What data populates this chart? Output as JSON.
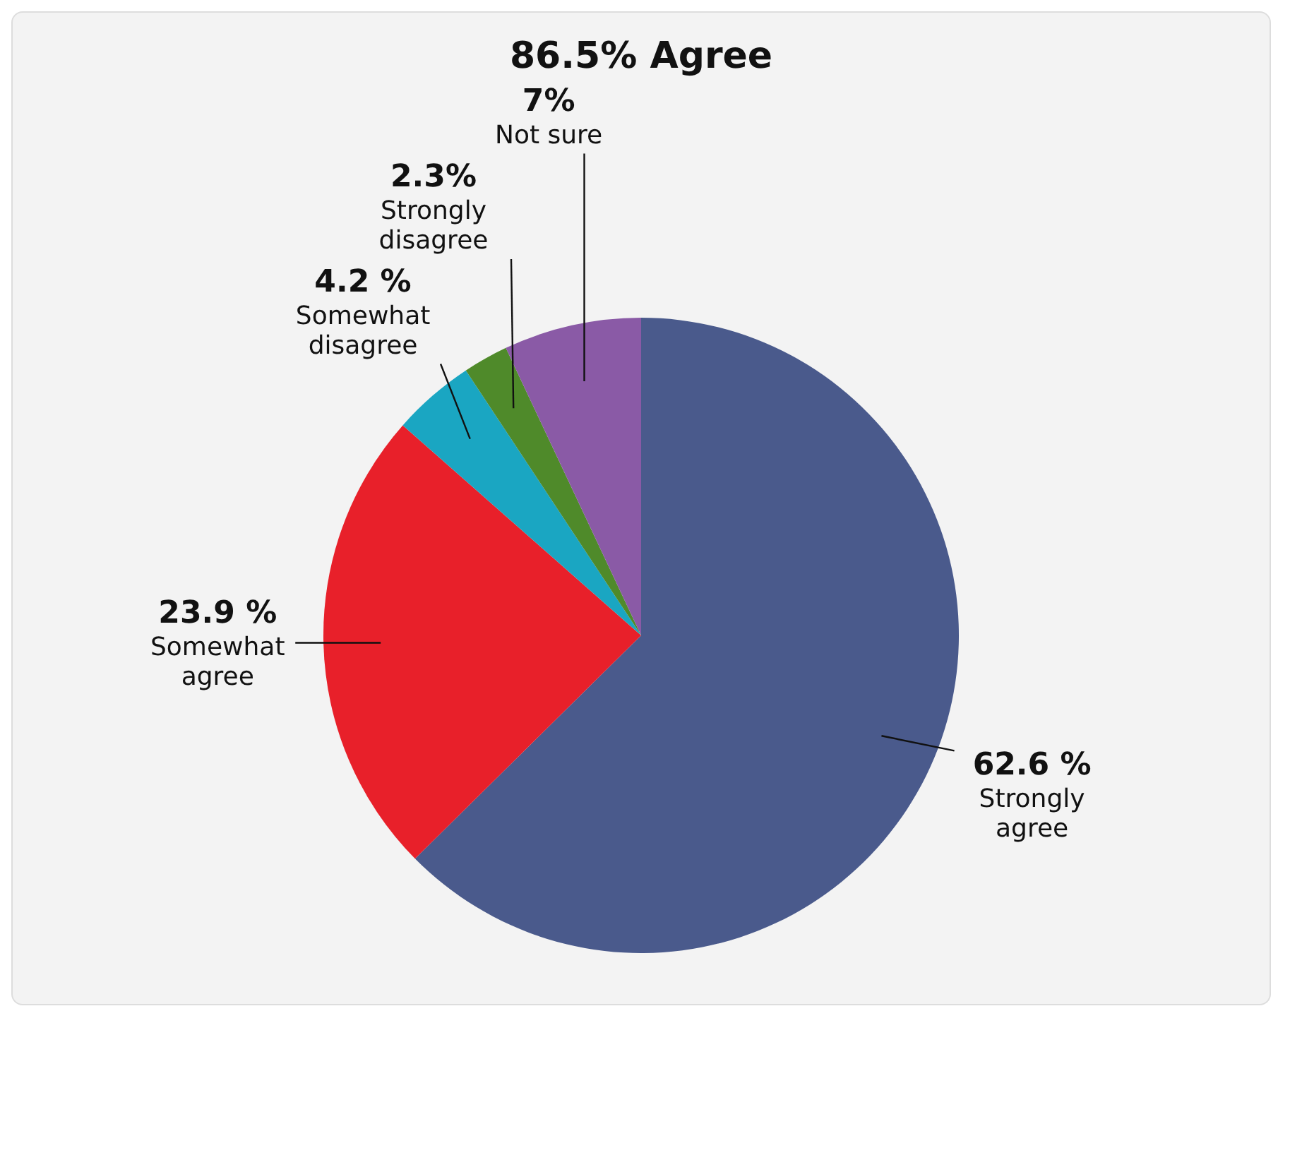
{
  "chart_data": {
    "type": "pie",
    "title": "86.5% Agree",
    "categories": [
      "Strongly agree",
      "Somewhat agree",
      "Somewhat disagree",
      "Strongly disagree",
      "Not sure"
    ],
    "values": [
      62.6,
      23.9,
      4.2,
      2.3,
      7
    ],
    "value_labels": [
      "62.6 %",
      "23.9 %",
      "4.2 %",
      "2.3%",
      "7%"
    ],
    "colors": [
      "#4a5a8c",
      "#e8202a",
      "#1aa6c2",
      "#4f8a2a",
      "#8a5aa6"
    ],
    "legend": false
  }
}
